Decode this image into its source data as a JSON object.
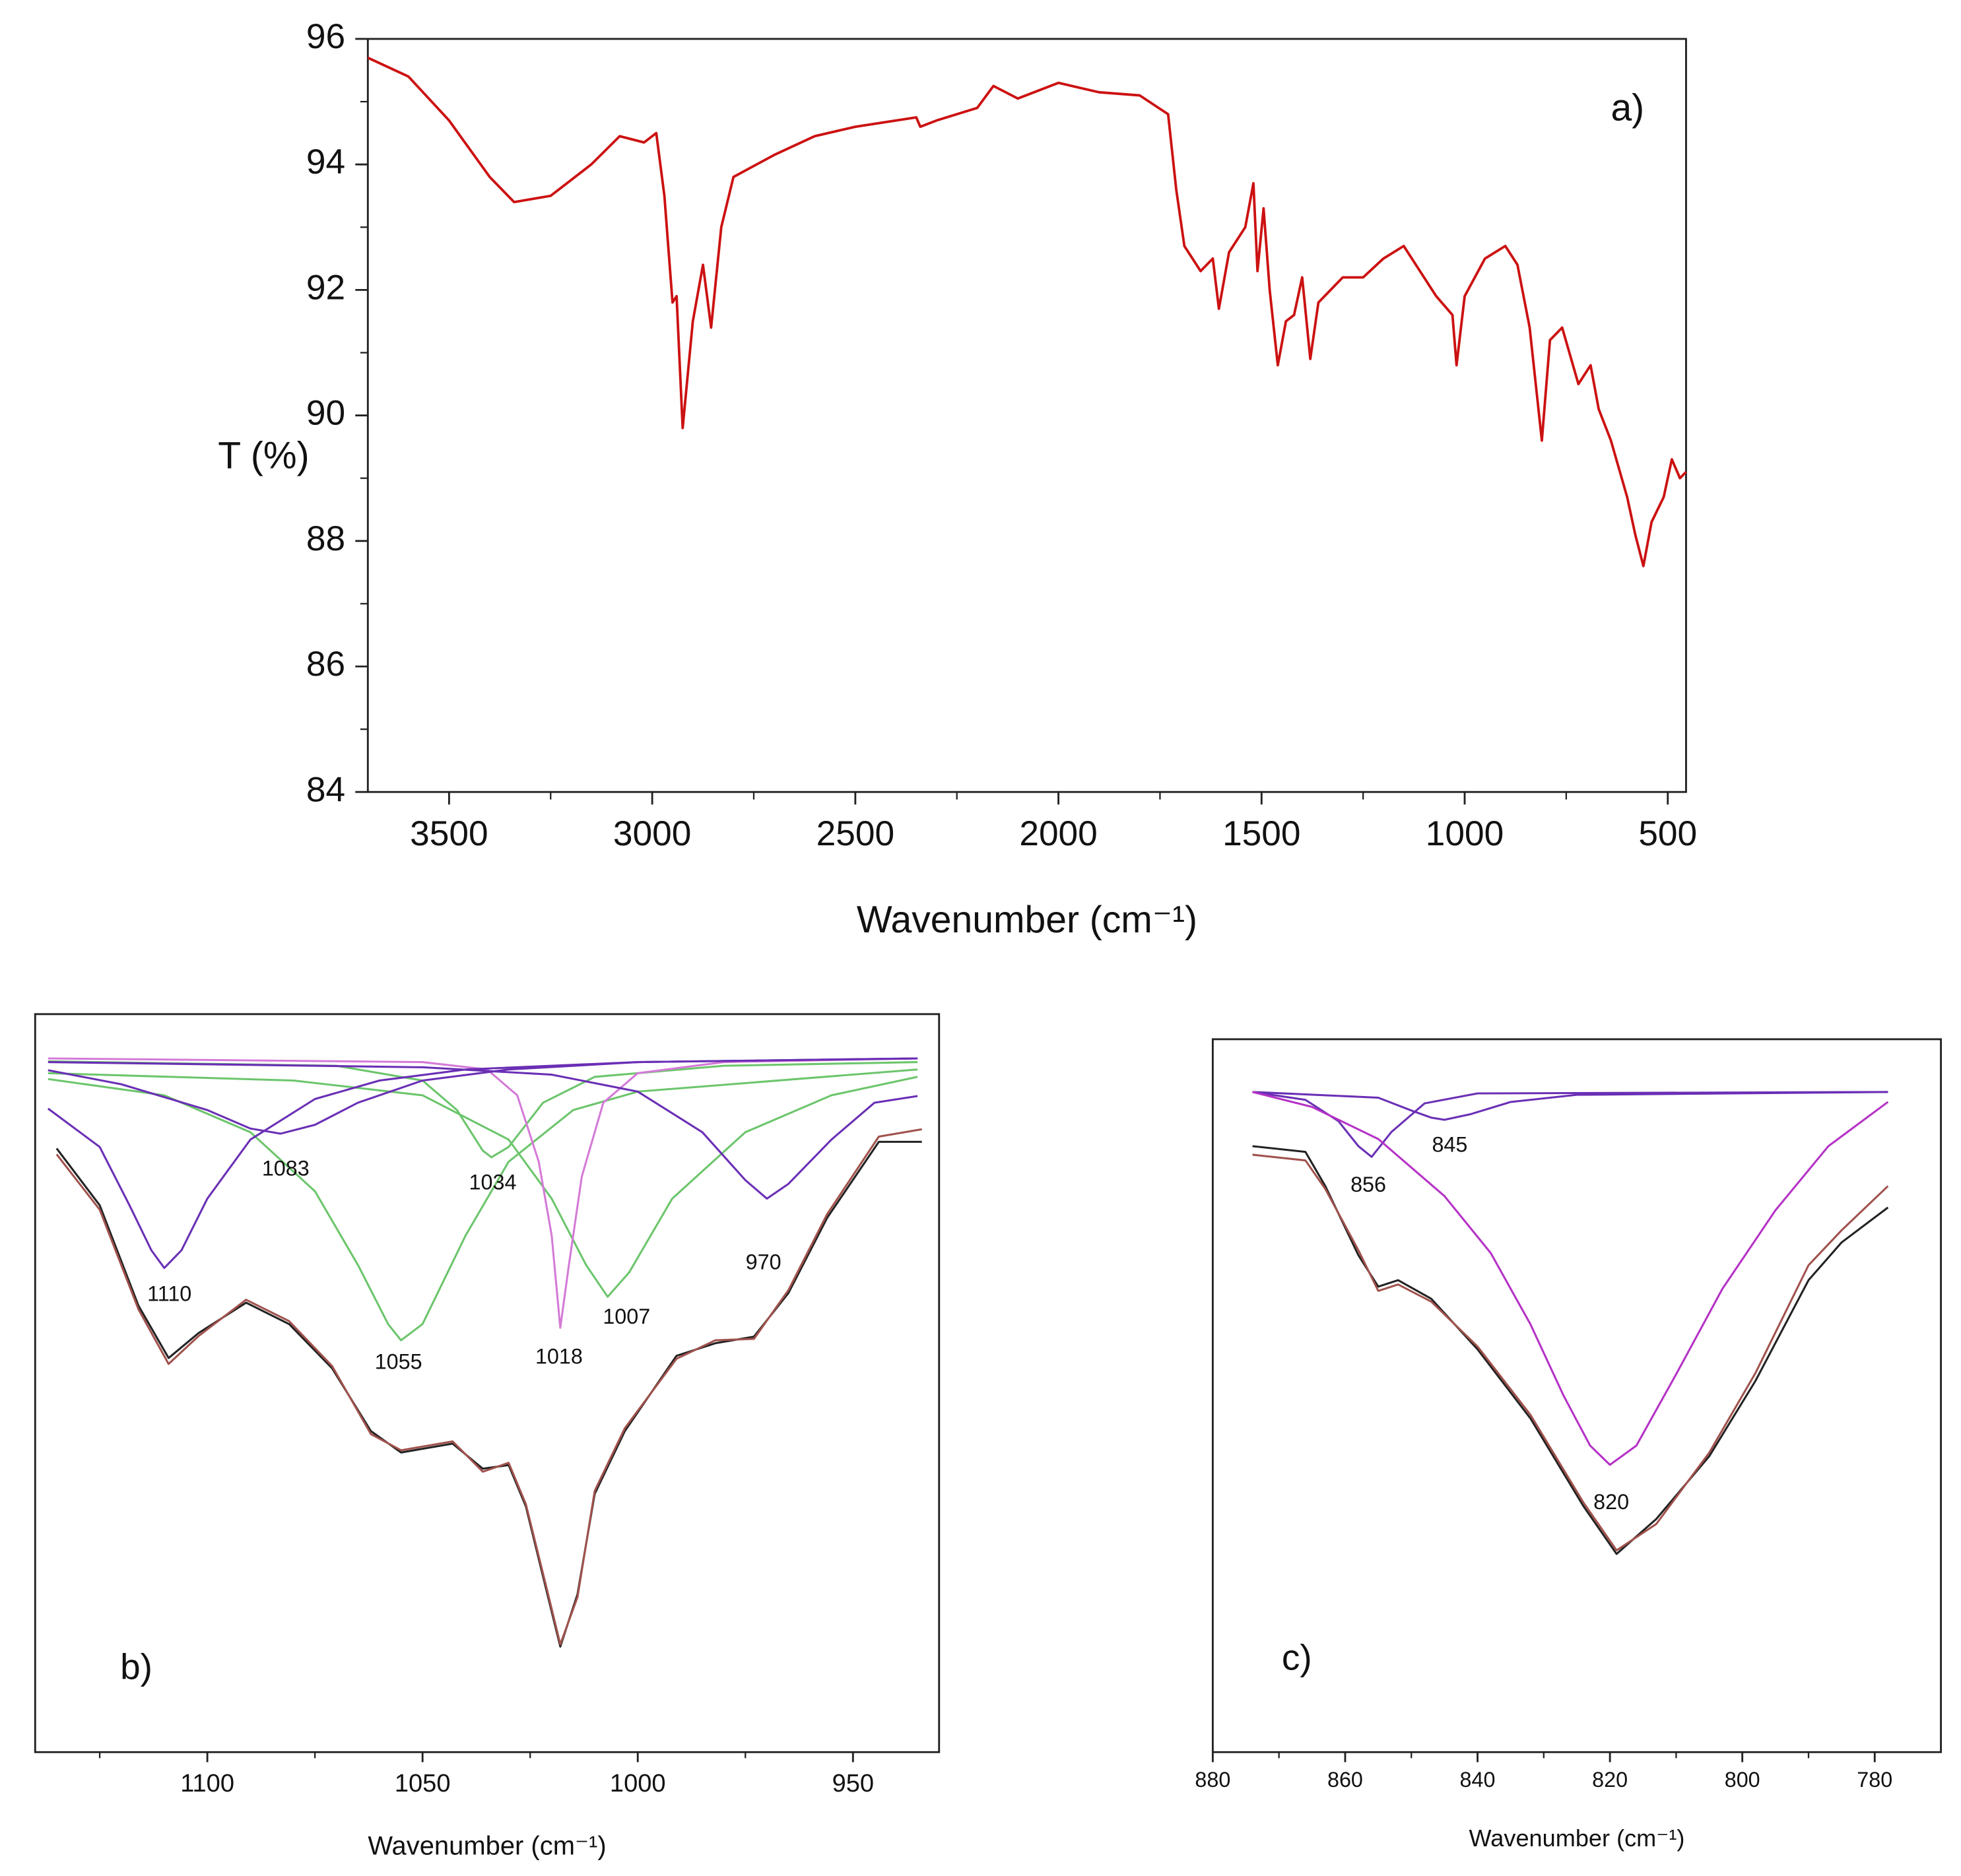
{
  "chart_data": [
    {
      "type": "line",
      "xlabel": "Wavenumber (cm⁻¹)",
      "ylabel": "T (%)",
      "xlim": [
        3700,
        455
      ],
      "ylim": [
        84,
        96
      ],
      "xticks": [
        3500,
        3000,
        2500,
        2000,
        1500,
        1000,
        500
      ],
      "xminorticks": [
        3250,
        2750,
        2250,
        1750,
        1250,
        750
      ],
      "yticks": [
        84,
        86,
        88,
        90,
        92,
        94,
        96
      ],
      "yminorticks": [
        85,
        87,
        89,
        91,
        93,
        95
      ],
      "annotations": [
        {
          "text": "a)",
          "x": 599,
          "y": 94.86
        }
      ],
      "series": [
        {
          "color": "#cc1111",
          "x": [
            3700,
            3600,
            3500,
            3400,
            3340,
            3250,
            3150,
            3080,
            3020,
            2990,
            2970,
            2950,
            2940,
            2925,
            2900,
            2875,
            2855,
            2830,
            2800,
            2700,
            2600,
            2500,
            2400,
            2350,
            2340,
            2300,
            2200,
            2160,
            2100,
            2000,
            1900,
            1800,
            1730,
            1710,
            1690,
            1650,
            1620,
            1605,
            1580,
            1540,
            1520,
            1510,
            1495,
            1480,
            1460,
            1440,
            1420,
            1400,
            1380,
            1360,
            1300,
            1250,
            1200,
            1150,
            1100,
            1070,
            1030,
            1020,
            1000,
            950,
            900,
            870,
            840,
            810,
            790,
            760,
            720,
            690,
            670,
            640,
            600,
            580,
            560,
            540,
            510,
            490,
            470,
            455
          ],
          "values": [
            95.7,
            95.4,
            94.7,
            93.8,
            93.4,
            93.5,
            94.0,
            94.45,
            94.35,
            94.5,
            93.5,
            91.8,
            91.9,
            89.8,
            91.5,
            92.4,
            91.4,
            93.0,
            93.8,
            94.15,
            94.45,
            94.6,
            94.7,
            94.75,
            94.6,
            94.7,
            94.9,
            95.25,
            95.05,
            95.3,
            95.15,
            95.1,
            94.8,
            93.6,
            92.7,
            92.3,
            92.5,
            91.7,
            92.6,
            93.0,
            93.7,
            92.3,
            93.3,
            92.0,
            90.8,
            91.5,
            91.6,
            92.2,
            90.9,
            91.8,
            92.2,
            92.2,
            92.5,
            92.7,
            92.2,
            91.9,
            91.6,
            90.8,
            91.9,
            92.5,
            92.7,
            92.4,
            91.4,
            89.6,
            91.2,
            91.4,
            90.5,
            90.8,
            90.1,
            89.6,
            88.7,
            88.1,
            87.6,
            88.3,
            88.7,
            89.3,
            89.0,
            89.1
          ]
        }
      ]
    },
    {
      "type": "line",
      "xlabel": "Wavenumber (cm⁻¹)",
      "xlim": [
        1140,
        930
      ],
      "ylim": [
        0,
        100
      ],
      "xticks": [
        1100,
        1050,
        1000,
        950
      ],
      "xminorticks": [
        1125,
        1075,
        1025,
        975
      ],
      "annotations": [
        {
          "text": "1110",
          "x": 1108.8,
          "y": 61.9
        },
        {
          "text": "1083",
          "x": 1081.8,
          "y": 78.9
        },
        {
          "text": "1034",
          "x": 1033.7,
          "y": 77.0
        },
        {
          "text": "970",
          "x": 970.8,
          "y": 66.2
        },
        {
          "text": "1055",
          "x": 1055.6,
          "y": 52.7
        },
        {
          "text": "1018",
          "x": 1018.3,
          "y": 53.4
        },
        {
          "text": "1007",
          "x": 1002.6,
          "y": 58.8
        },
        {
          "text": "b)",
          "x": 1116.5,
          "y": 11.2
        }
      ],
      "series": [
        {
          "color": "#6cc56c",
          "x": [
            1137,
            1110,
            1090,
            1075,
            1065,
            1058,
            1055,
            1050,
            1040,
            1030,
            1015,
            1000,
            935
          ],
          "values": [
            91.2,
            89,
            84,
            76,
            66,
            58,
            55.8,
            58,
            70,
            80,
            87,
            89.5,
            92.5
          ]
        },
        {
          "color": "#6cc56c",
          "x": [
            1137,
            1070,
            1050,
            1042,
            1036,
            1034,
            1030,
            1022,
            1010,
            980,
            935
          ],
          "values": [
            93.6,
            93,
            91,
            87,
            81.5,
            80.6,
            82,
            88,
            91.5,
            93,
            93.5
          ]
        },
        {
          "color": "#6cc56c",
          "x": [
            1137,
            1080,
            1050,
            1030,
            1020,
            1012,
            1007,
            1002,
            992,
            975,
            955,
            935
          ],
          "values": [
            92.0,
            91,
            89,
            83,
            75,
            66,
            61.7,
            65,
            75,
            84,
            89,
            91.5
          ]
        },
        {
          "color": "#d47ad8",
          "x": [
            1137,
            1050,
            1035,
            1028,
            1023,
            1020,
            1018,
            1016,
            1013,
            1008,
            1000,
            980,
            935
          ],
          "values": [
            94.0,
            93.5,
            92.5,
            89,
            80,
            70,
            57.5,
            66,
            78,
            88,
            92,
            93.5,
            94.0
          ]
        },
        {
          "color": "#6a2fb5",
          "x": [
            1137,
            1125,
            1118,
            1113,
            1110,
            1106,
            1100,
            1090,
            1075,
            1060,
            1040,
            1000,
            935
          ],
          "values": [
            87.2,
            82,
            74,
            68,
            65.6,
            68,
            75,
            83,
            88.5,
            91,
            92.5,
            93.5,
            94.0
          ]
        },
        {
          "color": "#6a2fb5",
          "x": [
            1137,
            1120,
            1100,
            1090,
            1083,
            1075,
            1065,
            1050,
            1030,
            1000,
            935
          ],
          "values": [
            92.4,
            90.5,
            87,
            84.5,
            83.8,
            85,
            88,
            91,
            92.5,
            93.5,
            94.0
          ]
        },
        {
          "color": "#6a2fb5",
          "x": [
            1137,
            1050,
            1020,
            1000,
            985,
            975,
            970,
            965,
            955,
            945,
            935
          ],
          "values": [
            93.5,
            92.8,
            91.8,
            89.5,
            84,
            77.5,
            75,
            77,
            83,
            88,
            88.9
          ]
        },
        {
          "color": "#222222",
          "x": [
            1135,
            1125,
            1116,
            1109,
            1102,
            1091,
            1081,
            1071,
            1062,
            1055,
            1043,
            1036,
            1030,
            1026,
            1021,
            1018,
            1014,
            1010,
            1003,
            991,
            982,
            973,
            965,
            956,
            944,
            934
          ],
          "values": [
            81.8,
            74.1,
            60.5,
            53.4,
            56.8,
            60.9,
            58.0,
            52.0,
            43.5,
            40.6,
            41.8,
            38.4,
            38.9,
            33.3,
            21.4,
            14.3,
            21.4,
            35.0,
            43.5,
            53.7,
            55.4,
            56.3,
            62.2,
            72.4,
            82.7,
            82.7
          ]
        },
        {
          "color": "#a0524d",
          "x": [
            1135,
            1125,
            1116,
            1109,
            1102,
            1091,
            1081,
            1071,
            1062,
            1055,
            1043,
            1036,
            1030,
            1026,
            1021,
            1018,
            1014,
            1010,
            1003,
            991,
            982,
            973,
            965,
            956,
            944,
            934
          ],
          "values": [
            81.0,
            73.5,
            60.0,
            52.6,
            56.4,
            61.3,
            58.4,
            52.3,
            43.1,
            40.9,
            42.1,
            38.0,
            39.2,
            33.6,
            21.8,
            14.6,
            21.0,
            35.4,
            43.9,
            53.3,
            55.8,
            56.0,
            62.6,
            72.9,
            83.4,
            84.4
          ]
        }
      ]
    },
    {
      "type": "line",
      "xlabel": "Wavenumber (cm⁻¹)",
      "xlim": [
        880,
        770
      ],
      "ylim": [
        0,
        100
      ],
      "xticks": [
        880,
        860,
        840,
        820,
        800,
        780
      ],
      "xminorticks": [
        870,
        850,
        830,
        810,
        790
      ],
      "annotations": [
        {
          "text": "856",
          "x": 856.5,
          "y": 79.4
        },
        {
          "text": "845",
          "x": 844.2,
          "y": 85.0
        },
        {
          "text": "820",
          "x": 819.8,
          "y": 34.9
        },
        {
          "text": "c)",
          "x": 867.3,
          "y": 12.9
        }
      ],
      "series": [
        {
          "color": "#6a2fb5",
          "x": [
            874,
            866,
            861,
            858,
            856,
            853,
            848,
            840,
            778
          ],
          "values": [
            92.6,
            91.5,
            88.5,
            85,
            83.5,
            87,
            91,
            92.4,
            92.6
          ]
        },
        {
          "color": "#6a2fb5",
          "x": [
            874,
            855,
            850,
            847,
            845,
            841,
            835,
            825,
            778
          ],
          "values": [
            92.6,
            91.8,
            90,
            89,
            88.7,
            89.5,
            91.2,
            92.2,
            92.6
          ]
        },
        {
          "color": "#b532c6",
          "x": [
            874,
            865,
            855,
            845,
            838,
            832,
            827,
            823,
            820,
            816,
            810,
            803,
            795,
            787,
            778
          ],
          "values": [
            92.6,
            90.5,
            86,
            78,
            70,
            60,
            50,
            43,
            40.3,
            43,
            53,
            65,
            76,
            85,
            91.2
          ]
        },
        {
          "color": "#222222",
          "x": [
            874,
            866,
            863,
            858,
            855,
            852,
            847,
            840,
            832,
            824,
            819,
            813,
            805,
            798,
            790,
            785,
            778
          ],
          "values": [
            85.0,
            84.2,
            79.4,
            69.7,
            65.3,
            66.2,
            63.6,
            56.5,
            46.8,
            34.5,
            27.8,
            32.7,
            41.5,
            52.1,
            66.2,
            71.5,
            76.4
          ]
        },
        {
          "color": "#a0524d",
          "x": [
            874,
            866,
            863,
            858,
            855,
            852,
            847,
            840,
            832,
            824,
            819,
            813,
            805,
            798,
            790,
            785,
            778
          ],
          "values": [
            83.8,
            83.0,
            79.0,
            70.4,
            64.7,
            65.6,
            63.2,
            56.9,
            47.3,
            35.0,
            28.3,
            32.0,
            42.0,
            53.2,
            68.3,
            73.2,
            79.4
          ]
        }
      ]
    }
  ]
}
